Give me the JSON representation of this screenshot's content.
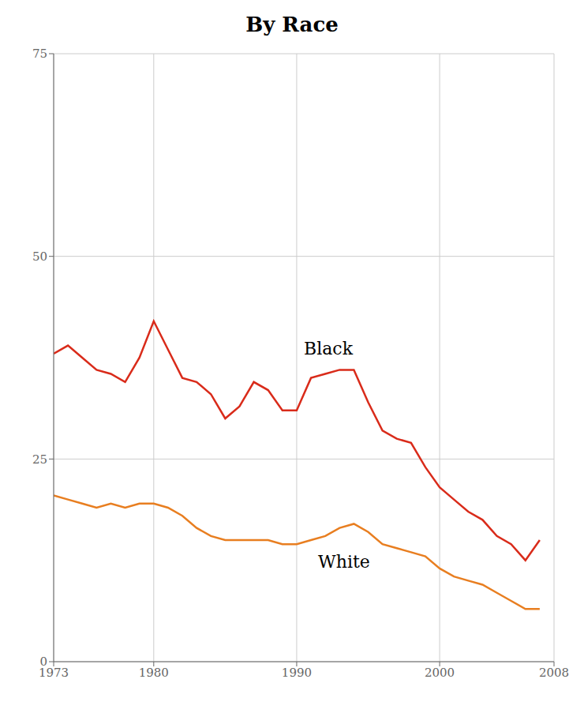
{
  "chart_data": {
    "type": "line",
    "title": "By Race",
    "x": [
      1973,
      1974,
      1975,
      1976,
      1977,
      1978,
      1979,
      1980,
      1981,
      1982,
      1983,
      1984,
      1985,
      1986,
      1987,
      1988,
      1989,
      1990,
      1991,
      1992,
      1993,
      1994,
      1995,
      1996,
      1997,
      1998,
      1999,
      2000,
      2001,
      2002,
      2003,
      2004,
      2005,
      2006,
      2007
    ],
    "series": [
      {
        "name": "Black",
        "color": "#d92b1a",
        "values": [
          38.0,
          39.0,
          37.5,
          36.0,
          35.5,
          34.5,
          37.5,
          42.0,
          38.5,
          35.0,
          34.5,
          33.0,
          30.0,
          31.5,
          34.5,
          33.5,
          31.0,
          31.0,
          35.0,
          35.5,
          36.0,
          36.0,
          32.0,
          28.5,
          27.5,
          27.0,
          24.0,
          21.5,
          20.0,
          18.5,
          17.5,
          15.5,
          14.5,
          12.5,
          15.0
        ]
      },
      {
        "name": "White",
        "color": "#e87e20",
        "values": [
          20.5,
          20.0,
          19.5,
          19.0,
          19.5,
          19.0,
          19.5,
          19.5,
          19.0,
          18.0,
          16.5,
          15.5,
          15.0,
          15.0,
          15.0,
          15.0,
          14.5,
          14.5,
          15.0,
          15.5,
          16.5,
          17.0,
          16.0,
          14.5,
          14.0,
          13.5,
          13.0,
          11.5,
          10.5,
          10.0,
          9.5,
          8.5,
          7.5,
          6.5,
          6.5
        ]
      }
    ],
    "annotations": [
      {
        "text": "Black",
        "x": 1990.5,
        "y": 37.5
      },
      {
        "text": "White",
        "x": 1991.5,
        "y": 13.5
      }
    ],
    "xlim": [
      1973,
      2008
    ],
    "xticks": [
      1973,
      1980,
      1990,
      2000,
      2008
    ],
    "ylim": [
      0,
      75
    ],
    "yticks": [
      0,
      25,
      50,
      75
    ],
    "grid": true
  }
}
